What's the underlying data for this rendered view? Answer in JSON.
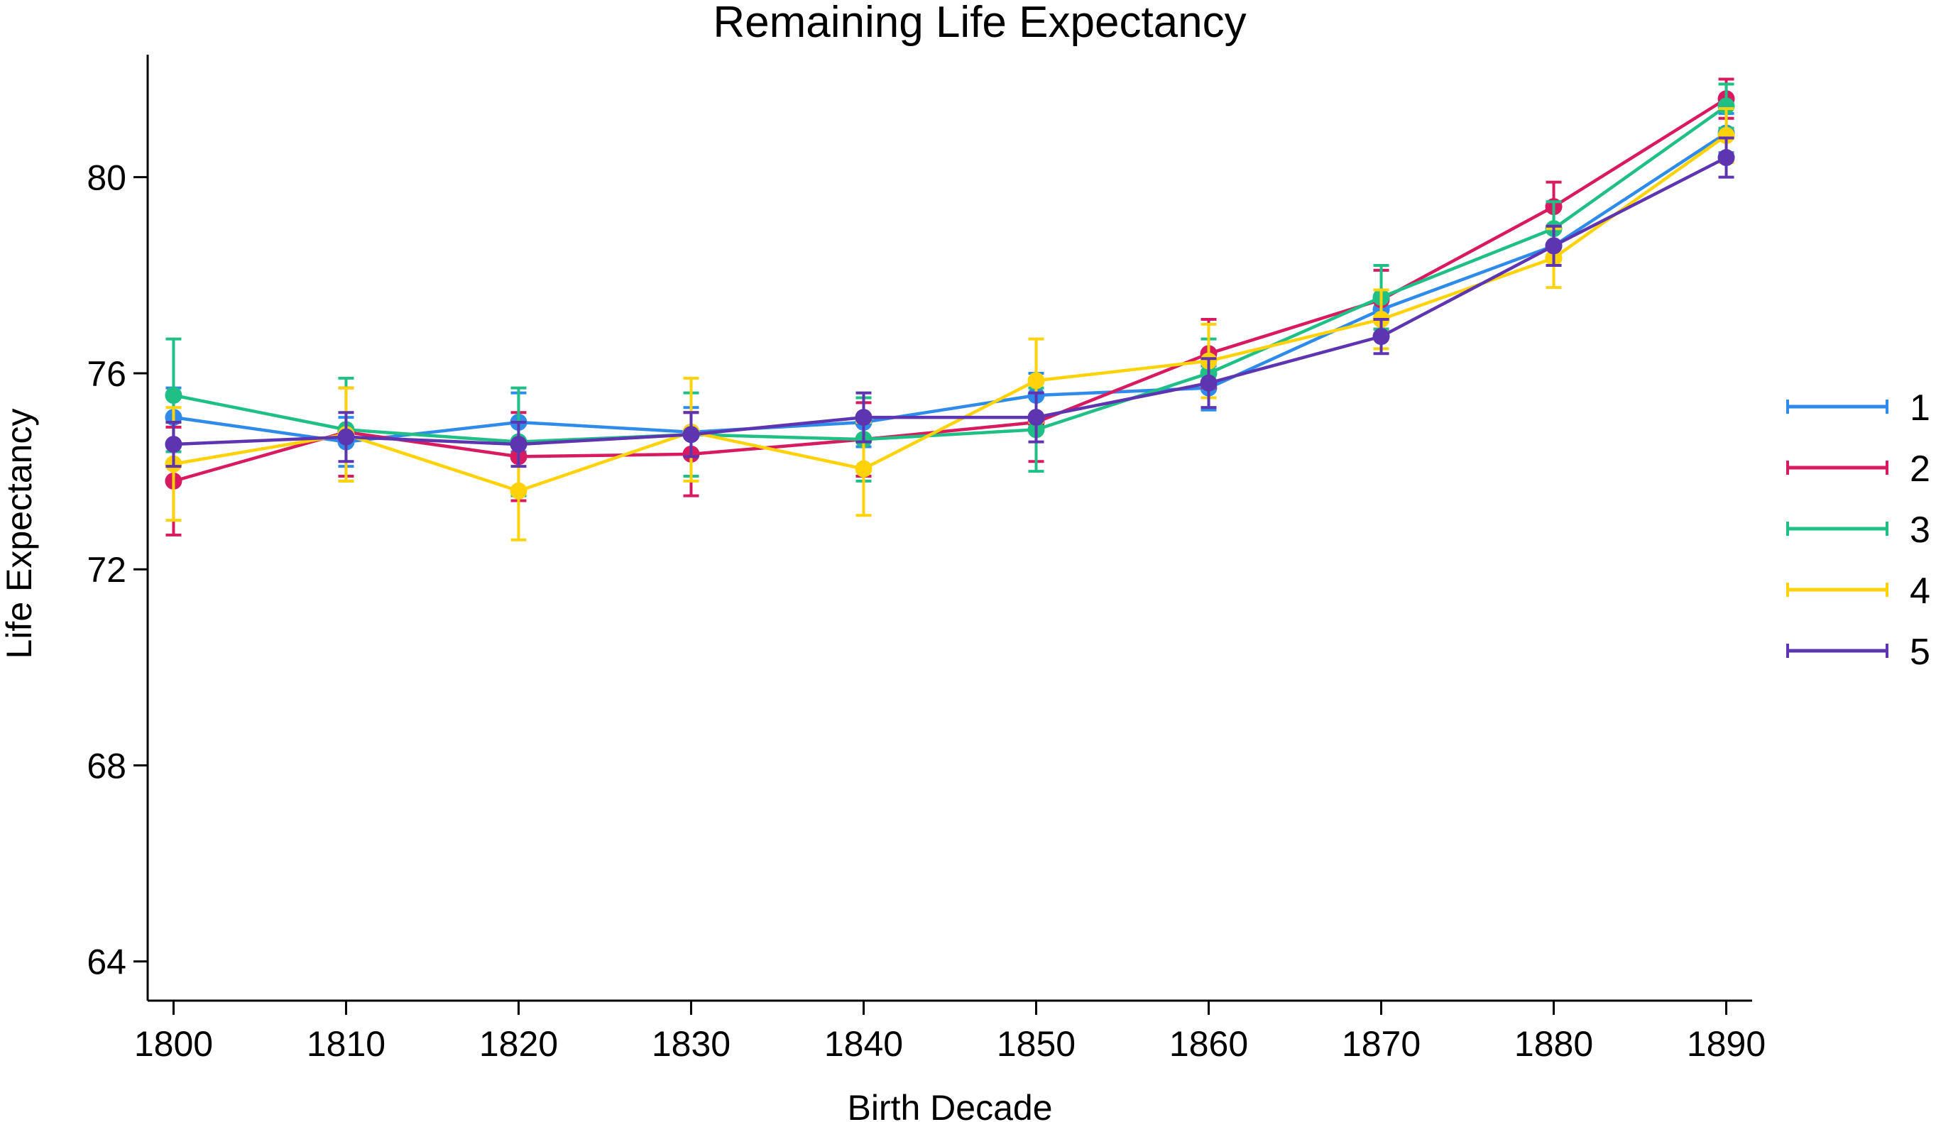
{
  "chart_data": {
    "type": "line",
    "title": "Remaining Life Expectancy",
    "xlabel": "Birth Decade",
    "ylabel": "Life Expectancy",
    "x": [
      1800,
      1810,
      1820,
      1830,
      1840,
      1850,
      1860,
      1870,
      1880,
      1890
    ],
    "xlim": [
      1798.5,
      1891.5
    ],
    "ylim": [
      63.2,
      82.5
    ],
    "yticks": [
      64,
      68,
      72,
      76,
      80
    ],
    "grid": false,
    "legend_position": "right",
    "series": [
      {
        "name": "1",
        "color": "#2E8BEA",
        "values": [
          75.1,
          74.6,
          75.0,
          74.8,
          75.0,
          75.55,
          75.7,
          77.3,
          78.6,
          80.9
        ],
        "err_low": [
          74.5,
          74.1,
          74.4,
          74.3,
          74.5,
          75.1,
          75.25,
          76.9,
          78.2,
          80.5
        ],
        "err_high": [
          75.7,
          75.1,
          75.6,
          75.3,
          75.5,
          76.0,
          76.15,
          77.7,
          79.0,
          81.3
        ]
      },
      {
        "name": "2",
        "color": "#D81B60",
        "values": [
          73.8,
          74.8,
          74.3,
          74.35,
          74.65,
          75.0,
          76.4,
          77.5,
          79.4,
          81.6
        ],
        "err_low": [
          72.7,
          73.9,
          73.4,
          73.5,
          73.9,
          74.2,
          75.7,
          76.9,
          78.9,
          81.2
        ],
        "err_high": [
          74.9,
          75.7,
          75.2,
          75.2,
          75.4,
          75.8,
          77.1,
          78.1,
          79.9,
          82.0
        ]
      },
      {
        "name": "3",
        "color": "#1FBF86",
        "values": [
          75.55,
          74.85,
          74.6,
          74.75,
          74.65,
          74.85,
          76.0,
          77.55,
          78.95,
          81.45
        ],
        "err_low": [
          74.4,
          73.8,
          73.5,
          73.9,
          73.8,
          74.0,
          75.3,
          76.9,
          78.4,
          81.0
        ],
        "err_high": [
          76.7,
          75.9,
          75.7,
          75.6,
          75.5,
          75.7,
          76.7,
          78.2,
          79.5,
          81.9
        ]
      },
      {
        "name": "4",
        "color": "#FFD20A",
        "values": [
          74.15,
          74.75,
          73.6,
          74.8,
          74.05,
          75.85,
          76.25,
          77.1,
          78.35,
          80.85
        ],
        "err_low": [
          73.0,
          73.8,
          72.6,
          73.8,
          73.1,
          75.0,
          75.5,
          76.5,
          77.75,
          80.3
        ],
        "err_high": [
          75.3,
          75.7,
          74.6,
          75.9,
          75.0,
          76.7,
          77.0,
          77.7,
          78.95,
          81.4
        ]
      },
      {
        "name": "5",
        "color": "#5E35B1",
        "values": [
          74.55,
          74.7,
          74.55,
          74.75,
          75.1,
          75.1,
          75.8,
          76.75,
          78.6,
          80.4
        ],
        "err_low": [
          74.1,
          74.2,
          74.1,
          74.3,
          74.6,
          74.6,
          75.3,
          76.4,
          78.2,
          80.0
        ],
        "err_high": [
          75.0,
          75.2,
          75.0,
          75.2,
          75.6,
          75.6,
          76.3,
          77.1,
          79.0,
          80.8
        ]
      }
    ]
  }
}
